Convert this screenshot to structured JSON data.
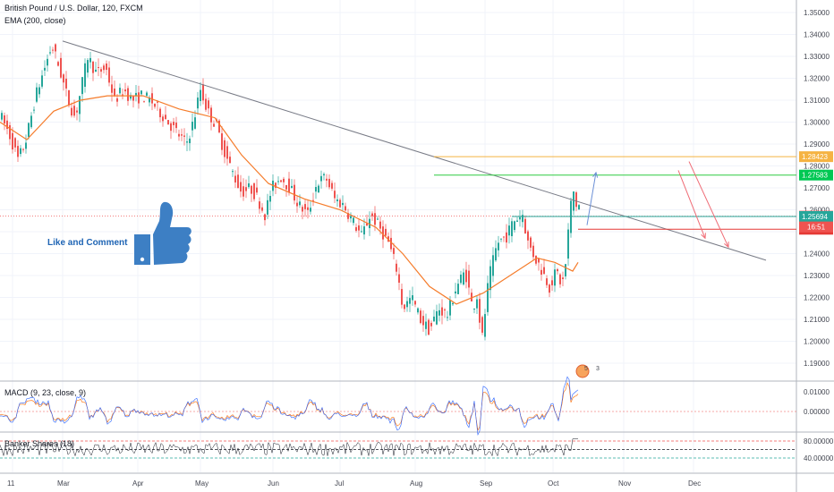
{
  "header": {
    "symbol": "British Pound / U.S. Dollar, 120, FXCM",
    "indicator": "EMA (200, close)"
  },
  "annotation": {
    "text": "Like and Comment",
    "icon": "thumbs-up-icon",
    "color": "#3d7fc4"
  },
  "colors": {
    "up": "#26a69a",
    "down": "#ef5350",
    "ema": "#f57c2b",
    "trend": "#787b86",
    "orange_line": "#f5b342",
    "green_line": "#2ecc40",
    "red_line": "#e53935"
  },
  "chart_data": [
    {
      "type": "candlestick",
      "ylim": [
        1.185,
        1.355
      ],
      "x_labels": [
        "11",
        "Mar",
        "Apr",
        "May",
        "Jun",
        "Jul",
        "Aug",
        "Sep",
        "Oct",
        "Nov",
        "Dec"
      ],
      "y_ticks": [
        "1.35000",
        "1.34000",
        "1.33000",
        "1.32000",
        "1.31000",
        "1.30000",
        "1.29000",
        "1.28000",
        "1.27000",
        "1.26000",
        "1.25000",
        "1.24000",
        "1.23000",
        "1.22000",
        "1.21000",
        "1.20000",
        "1.19000"
      ],
      "price_path": [
        [
          0,
          1.305
        ],
        [
          12,
          1.295
        ],
        [
          22,
          1.283
        ],
        [
          30,
          1.29
        ],
        [
          42,
          1.312
        ],
        [
          52,
          1.325
        ],
        [
          60,
          1.335
        ],
        [
          68,
          1.325
        ],
        [
          78,
          1.31
        ],
        [
          86,
          1.302
        ],
        [
          94,
          1.318
        ],
        [
          100,
          1.33
        ],
        [
          110,
          1.322
        ],
        [
          120,
          1.325
        ],
        [
          130,
          1.31
        ],
        [
          140,
          1.315
        ],
        [
          150,
          1.31
        ],
        [
          160,
          1.312
        ],
        [
          170,
          1.31
        ],
        [
          180,
          1.305
        ],
        [
          190,
          1.3
        ],
        [
          200,
          1.295
        ],
        [
          210,
          1.29
        ],
        [
          218,
          1.3
        ],
        [
          226,
          1.315
        ],
        [
          234,
          1.305
        ],
        [
          244,
          1.298
        ],
        [
          254,
          1.285
        ],
        [
          264,
          1.275
        ],
        [
          272,
          1.268
        ],
        [
          282,
          1.27
        ],
        [
          290,
          1.265
        ],
        [
          298,
          1.258
        ],
        [
          306,
          1.27
        ],
        [
          316,
          1.275
        ],
        [
          326,
          1.27
        ],
        [
          336,
          1.262
        ],
        [
          346,
          1.258
        ],
        [
          356,
          1.272
        ],
        [
          366,
          1.275
        ],
        [
          376,
          1.265
        ],
        [
          386,
          1.262
        ],
        [
          396,
          1.255
        ],
        [
          406,
          1.248
        ],
        [
          416,
          1.258
        ],
        [
          426,
          1.252
        ],
        [
          436,
          1.245
        ],
        [
          446,
          1.232
        ],
        [
          452,
          1.215
        ],
        [
          462,
          1.22
        ],
        [
          472,
          1.21
        ],
        [
          482,
          1.205
        ],
        [
          492,
          1.215
        ],
        [
          502,
          1.212
        ],
        [
          512,
          1.225
        ],
        [
          522,
          1.232
        ],
        [
          530,
          1.215
        ],
        [
          536,
          1.222
        ],
        [
          540,
          1.198
        ],
        [
          548,
          1.228
        ],
        [
          558,
          1.245
        ],
        [
          568,
          1.248
        ],
        [
          576,
          1.255
        ],
        [
          586,
          1.258
        ],
        [
          592,
          1.245
        ],
        [
          600,
          1.238
        ],
        [
          608,
          1.232
        ],
        [
          616,
          1.225
        ],
        [
          624,
          1.232
        ],
        [
          630,
          1.225
        ],
        [
          634,
          1.235
        ],
        [
          638,
          1.255
        ],
        [
          642,
          1.27
        ],
        [
          646,
          1.262
        ]
      ],
      "ema_path": [
        [
          0,
          1.3
        ],
        [
          30,
          1.292
        ],
        [
          60,
          1.305
        ],
        [
          90,
          1.31
        ],
        [
          120,
          1.312
        ],
        [
          160,
          1.312
        ],
        [
          200,
          1.306
        ],
        [
          240,
          1.302
        ],
        [
          270,
          1.285
        ],
        [
          300,
          1.272
        ],
        [
          340,
          1.265
        ],
        [
          380,
          1.26
        ],
        [
          420,
          1.252
        ],
        [
          450,
          1.24
        ],
        [
          480,
          1.225
        ],
        [
          510,
          1.217
        ],
        [
          540,
          1.222
        ],
        [
          570,
          1.23
        ],
        [
          600,
          1.238
        ],
        [
          620,
          1.236
        ],
        [
          640,
          1.232
        ],
        [
          646,
          1.236
        ]
      ],
      "trendline": [
        [
          70,
          1.337
        ],
        [
          856,
          1.237
        ]
      ],
      "hlines": [
        {
          "y": 1.28423,
          "x_from": 485,
          "color": "#f5b342",
          "label": "1.28423",
          "label_bg": "#f5b342"
        },
        {
          "y": 1.27583,
          "x_from": 485,
          "color": "#2ecc40",
          "label": "1.27583",
          "label_bg": "#00c853"
        },
        {
          "y": 1.25708,
          "x_from": 0,
          "color": "#ef5350",
          "dashed": true,
          "label": "1.25708",
          "label_bg": "#ef5350"
        },
        {
          "y": 1.25694,
          "x_from": 572,
          "color": "#26a69a",
          "label": "1.25694",
          "label_bg": "#26a69a"
        },
        {
          "y": 1.25111,
          "x_from": 646,
          "color": "#e53935",
          "label": "1.25111",
          "label_bg": "#e53935"
        }
      ],
      "countdown_label": "16:51",
      "arrows": [
        {
          "from": [
            656,
            1.253
          ],
          "to": [
            666,
            1.277
          ],
          "color": "#6a8fd6"
        },
        {
          "from": [
            758,
            1.278
          ],
          "to": [
            788,
            1.247
          ],
          "color": "#ef6b75"
        },
        {
          "from": [
            770,
            1.282
          ],
          "to": [
            814,
            1.243
          ],
          "color": "#ef6b75"
        }
      ],
      "event_badges": [
        "5",
        "3"
      ]
    },
    {
      "type": "line",
      "title": "MACD (9, 23, close, 9)",
      "y_ticks": [
        "0.01000",
        "0.00000"
      ],
      "ylim": [
        -0.006,
        0.014
      ]
    },
    {
      "type": "line",
      "title": "Banker Shares (18)",
      "y_ticks": [
        "80.00000",
        "40.00000"
      ],
      "levels": [
        80,
        60,
        40
      ],
      "ylim": [
        20,
        95
      ]
    }
  ]
}
